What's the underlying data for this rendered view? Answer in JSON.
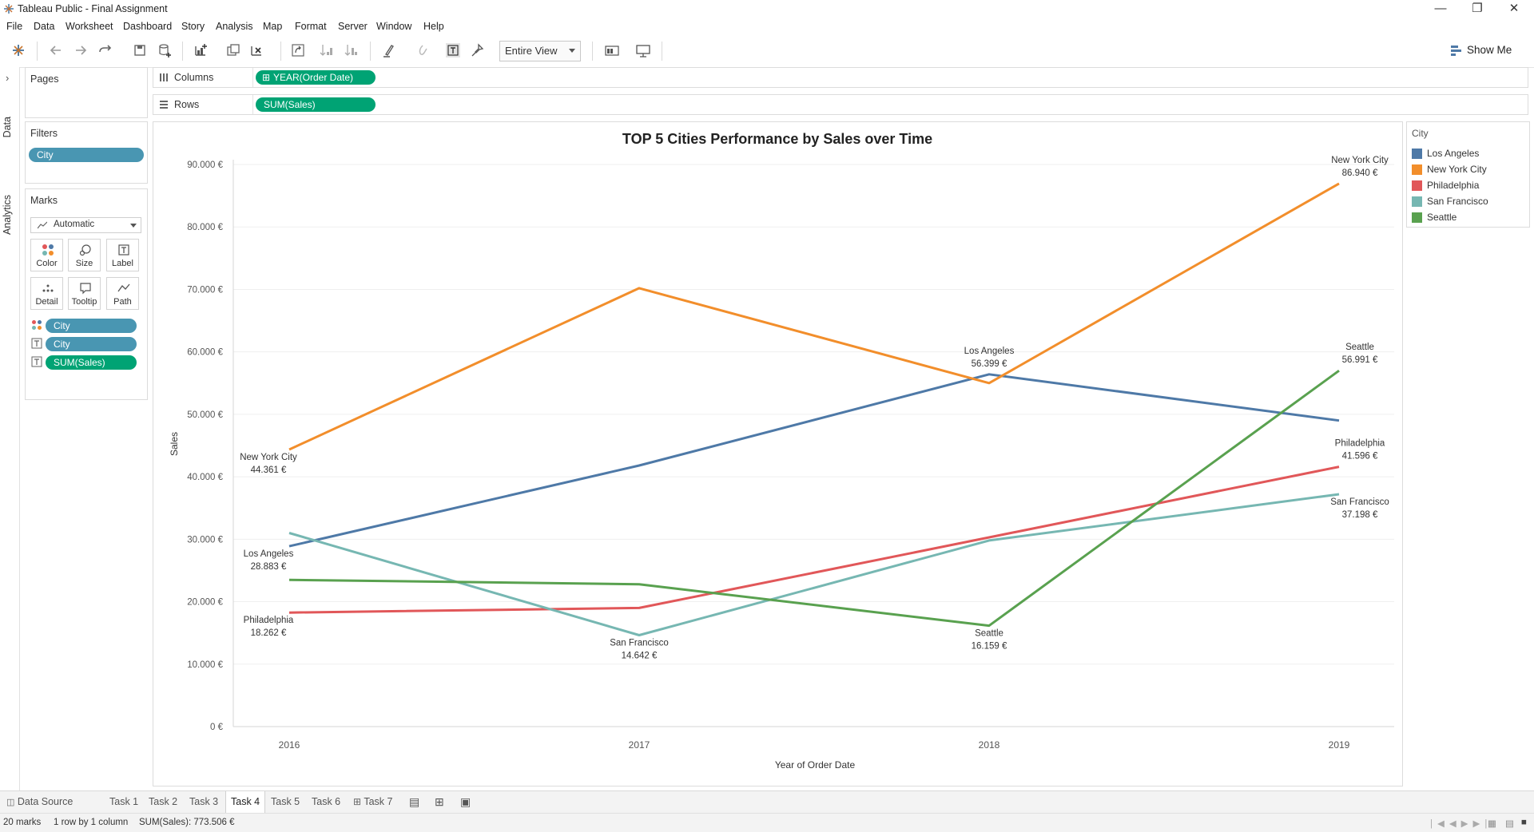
{
  "window": {
    "title": "Tableau Public - Final Assignment"
  },
  "menu": [
    "File",
    "Data",
    "Worksheet",
    "Dashboard",
    "Story",
    "Analysis",
    "Map",
    "Format",
    "Server",
    "Window",
    "Help"
  ],
  "toolbar": {
    "fit_value": "Entire View",
    "show_me_label": "Show Me"
  },
  "side_tabs": {
    "data": "Data",
    "analytics": "Analytics"
  },
  "pages_panel": {
    "title": "Pages"
  },
  "filters_panel": {
    "title": "Filters",
    "pills": [
      "City"
    ]
  },
  "marks_panel": {
    "title": "Marks",
    "mark_type": "Automatic",
    "buttons": [
      "Color",
      "Size",
      "Label",
      "Detail",
      "Tooltip",
      "Path"
    ],
    "fields": [
      "City",
      "City",
      "SUM(Sales)"
    ]
  },
  "shelves": {
    "columns": {
      "label": "Columns",
      "pill": "YEAR(Order Date)"
    },
    "rows": {
      "label": "Rows",
      "pill": "SUM(Sales)"
    }
  },
  "legend": {
    "title": "City",
    "items": [
      {
        "label": "Los Angeles",
        "color": "#4e79a7"
      },
      {
        "label": "New York City",
        "color": "#f28e2b"
      },
      {
        "label": "Philadelphia",
        "color": "#e15759"
      },
      {
        "label": "San Francisco",
        "color": "#76b7b2"
      },
      {
        "label": "Seattle",
        "color": "#59a14f"
      }
    ]
  },
  "chart_data": {
    "type": "line",
    "title": "TOP 5 Cities Performance by Sales over Time",
    "xlabel": "Year of Order Date",
    "ylabel": "Sales",
    "categories": [
      "2016",
      "2017",
      "2018",
      "2019"
    ],
    "ylim": [
      0,
      90000
    ],
    "y_ticks": [
      "0 €",
      "10.000 €",
      "20.000 €",
      "30.000 €",
      "40.000 €",
      "50.000 €",
      "60.000 €",
      "70.000 €",
      "80.000 €",
      "90.000 €"
    ],
    "grid": "horizontal",
    "series": [
      {
        "name": "Los Angeles",
        "color": "#4e79a7",
        "values": [
          28883,
          41800,
          56399,
          49000
        ]
      },
      {
        "name": "New York City",
        "color": "#f28e2b",
        "values": [
          44361,
          70200,
          55000,
          86940
        ]
      },
      {
        "name": "Philadelphia",
        "color": "#e15759",
        "values": [
          18262,
          19000,
          30300,
          41596
        ]
      },
      {
        "name": "San Francisco",
        "color": "#76b7b2",
        "values": [
          31000,
          14642,
          29800,
          37198
        ]
      },
      {
        "name": "Seattle",
        "color": "#59a14f",
        "values": [
          23500,
          22800,
          16159,
          56991
        ]
      }
    ],
    "annotations": [
      {
        "series": 0,
        "index": 0,
        "name": "Los Angeles",
        "value": "28.883 €",
        "pos": "below"
      },
      {
        "series": 1,
        "index": 0,
        "name": "New York City",
        "value": "44.361 €",
        "pos": "below"
      },
      {
        "series": 2,
        "index": 0,
        "name": "Philadelphia",
        "value": "18.262 €",
        "pos": "below"
      },
      {
        "series": 3,
        "index": 1,
        "name": "San Francisco",
        "value": "14.642 €",
        "pos": "below"
      },
      {
        "series": 0,
        "index": 2,
        "name": "Los Angeles",
        "value": "56.399 €",
        "pos": "above"
      },
      {
        "series": 4,
        "index": 2,
        "name": "Seattle",
        "value": "16.159 €",
        "pos": "below"
      },
      {
        "series": 1,
        "index": 3,
        "name": "New York City",
        "value": "86.940 €",
        "pos": "above"
      },
      {
        "series": 4,
        "index": 3,
        "name": "Seattle",
        "value": "56.991 €",
        "pos": "above"
      },
      {
        "series": 2,
        "index": 3,
        "name": "Philadelphia",
        "value": "41.596 €",
        "pos": "above"
      },
      {
        "series": 3,
        "index": 3,
        "name": "San Francisco",
        "value": "37.198 €",
        "pos": "below"
      }
    ]
  },
  "sheet_tabs": {
    "data_source": "Data Source",
    "tabs": [
      "Task 1",
      "Task 2",
      "Task 3",
      "Task 4",
      "Task 5",
      "Task 6",
      "Task 7"
    ],
    "active": "Task 4"
  },
  "status": {
    "marks": "20 marks",
    "dims": "1 row by 1 column",
    "sum": "SUM(Sales): 773.506 €"
  }
}
